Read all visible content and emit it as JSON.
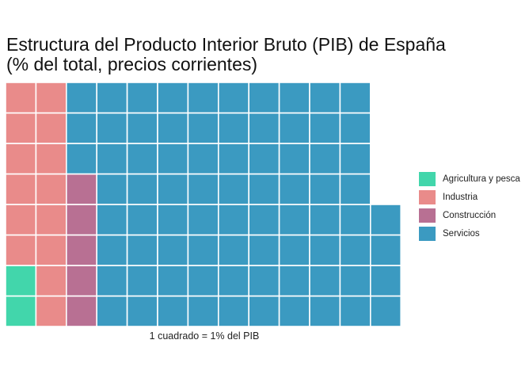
{
  "chart_data": {
    "type": "waffle",
    "title_line1": "Estructura del Producto Interior Bruto (PIB) de España",
    "title_line2": "(% del total, precios corrientes)",
    "caption": "1 cuadrado = 1% del PIB",
    "rows": 8,
    "fill_order": "column-wise from bottom-left",
    "legend_position": "right",
    "series": [
      {
        "name": "Agricultura y pesca",
        "value": 2,
        "color": "#42d6ab"
      },
      {
        "name": "Industria",
        "value": 14,
        "color": "#e98b8a"
      },
      {
        "name": "Construcción",
        "value": 5,
        "color": "#b87093"
      },
      {
        "name": "Servicios",
        "value": 79,
        "color": "#3b9ac1"
      }
    ]
  }
}
